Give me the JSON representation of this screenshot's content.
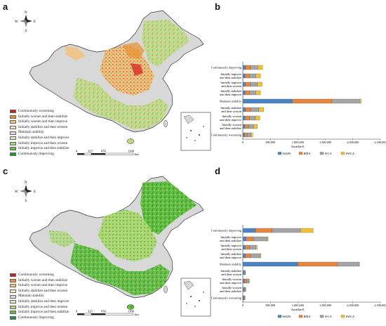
{
  "panels": [
    {
      "letter": "a"
    },
    {
      "letter": "b"
    },
    {
      "letter": "c"
    },
    {
      "letter": "d"
    }
  ],
  "map": {
    "compass": {
      "n": "N",
      "e": "E",
      "s": "S",
      "w": "W"
    },
    "scale": {
      "ticks": [
        "0",
        "325",
        "650",
        "1300"
      ],
      "unit": "km"
    }
  },
  "legend": {
    "items": [
      {
        "label": "Continuously worsening",
        "color": "#d7191c"
      },
      {
        "label": "Initially worsen and then stabilize",
        "color": "#e8912d"
      },
      {
        "label": "Initially worsen and then improve",
        "color": "#f3c07a"
      },
      {
        "label": "Initially stabilize and then worsen",
        "color": "#f7dfb3"
      },
      {
        "label": "Maintain stability",
        "color": "#d9d9d9"
      },
      {
        "label": "Initially stabilize and then improve",
        "color": "#d6ecb0"
      },
      {
        "label": "Initially improve and then worsen",
        "color": "#a6d96a"
      },
      {
        "label": "Initially improve and then stabilize",
        "color": "#66bd3f"
      },
      {
        "label": "Continuously improving",
        "color": "#1a9641"
      }
    ]
  },
  "chart_data": [
    {
      "type": "bar",
      "orientation": "horizontal",
      "stacked": true,
      "categories": [
        "Continuously improving",
        "Initially improve and then stabilize",
        "Initially improve and then worsen",
        "Initially stabilize and then improve",
        "Maintain stability",
        "Initially stabilize and then worsen",
        "Initially worsen and then improve",
        "Initially worsen and then stabilize",
        "Continuously worsening"
      ],
      "series": [
        {
          "name": "WAPA",
          "color": "#4e84c4",
          "values": [
            50000,
            40000,
            45000,
            40000,
            900000,
            50000,
            40000,
            35000,
            30000
          ]
        },
        {
          "name": "BMA",
          "color": "#e8853a",
          "values": [
            90000,
            80000,
            90000,
            80000,
            720000,
            90000,
            80000,
            70000,
            50000
          ]
        },
        {
          "name": "WCA",
          "color": "#a5a5a5",
          "values": [
            130000,
            120000,
            130000,
            120000,
            500000,
            150000,
            110000,
            90000,
            70000
          ]
        },
        {
          "name": "SWCA",
          "color": "#f1c232",
          "values": [
            90000,
            80000,
            85000,
            80000,
            30000,
            90000,
            80000,
            70000,
            30000
          ]
        }
      ],
      "xlabel": "Area(km²)",
      "xticks": [
        "0",
        "500,000",
        "1,000,000",
        "1,500,000",
        "2,000,000",
        "2,500,000"
      ],
      "xlim": [
        0,
        2500000
      ],
      "legend_position": "bottom"
    },
    {
      "type": "bar",
      "orientation": "horizontal",
      "stacked": true,
      "categories": [
        "Continuously improving",
        "Initially improve and then stabilize",
        "Initially improve and then worsen",
        "Initially stabilize and then improve",
        "Maintain stability",
        "Initially stabilize and then worsen",
        "Initially worsen and then improve",
        "Initially worsen and then stabilize",
        "Continuously worsening"
      ],
      "series": [
        {
          "name": "WAPA",
          "color": "#4e84c4",
          "values": [
            230000,
            60000,
            40000,
            50000,
            1000000,
            15000,
            30000,
            15000,
            10000
          ]
        },
        {
          "name": "BMA",
          "color": "#e8853a",
          "values": [
            300000,
            130000,
            80000,
            90000,
            720000,
            15000,
            40000,
            15000,
            10000
          ]
        },
        {
          "name": "WCA",
          "color": "#a5a5a5",
          "values": [
            520000,
            250000,
            120000,
            170000,
            390000,
            15000,
            40000,
            20000,
            15000
          ]
        },
        {
          "name": "SWCA",
          "color": "#f1c232",
          "values": [
            230000,
            20000,
            20000,
            20000,
            10000,
            5000,
            10000,
            5000,
            5000
          ]
        }
      ],
      "xlabel": "Area(km²)",
      "xticks": [
        "0",
        "500,000",
        "1,000,000",
        "1,500,000",
        "2,000,000",
        "2,500,000"
      ],
      "xlim": [
        0,
        2500000
      ],
      "legend_position": "bottom"
    }
  ]
}
